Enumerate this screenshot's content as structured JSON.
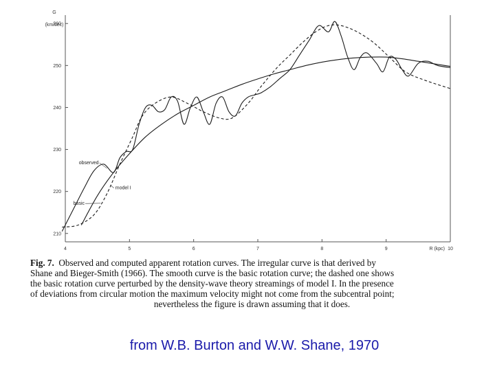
{
  "chart_data": {
    "type": "line",
    "title": "",
    "ylabel": "G",
    "ylabel_unit": "(km/sec)",
    "xlabel": "R (kpc)",
    "xlim": [
      4,
      10
    ],
    "ylim": [
      208,
      262
    ],
    "grid": false,
    "x_tick_labels": [
      {
        "value": 4,
        "label": "4"
      },
      {
        "value": 5,
        "label": "5"
      },
      {
        "value": 6,
        "label": "6"
      },
      {
        "value": 7,
        "label": "7"
      },
      {
        "value": 8,
        "label": "8"
      },
      {
        "value": 9,
        "label": "9"
      },
      {
        "value": 10,
        "label": "10"
      }
    ],
    "y_tick_labels": [
      {
        "value": 210,
        "label": "210"
      },
      {
        "value": 220,
        "label": "220"
      },
      {
        "value": 230,
        "label": "230"
      },
      {
        "value": 240,
        "label": "240"
      },
      {
        "value": 250,
        "label": "250"
      },
      {
        "value": 260,
        "label": "260"
      }
    ],
    "series": [
      {
        "name": "observed",
        "style": "solid",
        "x": [
          3.95,
          4.1,
          4.3,
          4.45,
          4.6,
          4.75,
          4.85,
          4.95,
          5.05,
          5.15,
          5.25,
          5.35,
          5.45,
          5.55,
          5.65,
          5.75,
          5.85,
          5.95,
          6.05,
          6.15,
          6.25,
          6.35,
          6.45,
          6.55,
          6.65,
          6.75,
          6.85,
          6.95,
          7.05,
          7.2,
          7.35,
          7.5,
          7.65,
          7.8,
          7.95,
          8.1,
          8.2,
          8.3,
          8.4,
          8.5,
          8.6,
          8.7,
          8.85,
          8.95,
          9.05,
          9.15,
          9.25,
          9.35,
          9.5,
          9.65,
          9.8,
          10.0
        ],
        "y": [
          210.5,
          215,
          221,
          225,
          226.5,
          224.5,
          228,
          229.5,
          230,
          236,
          240,
          240.5,
          239,
          239.5,
          242.5,
          241.5,
          236,
          240,
          242.5,
          239,
          236,
          241,
          242.5,
          239,
          238,
          241,
          242.5,
          243,
          243.5,
          245,
          247,
          249,
          252.5,
          256,
          259.5,
          258,
          260.5,
          257,
          252,
          249,
          252,
          253,
          250.5,
          248.5,
          252,
          251.5,
          249,
          247.5,
          250.5,
          251,
          250,
          249.5
        ]
      },
      {
        "name": "model I",
        "style": "dashed",
        "x": [
          3.95,
          4.2,
          4.45,
          4.65,
          4.85,
          5.05,
          5.2,
          5.4,
          5.65,
          5.9,
          6.15,
          6.4,
          6.6,
          6.85,
          7.05,
          7.3,
          7.5,
          7.7,
          7.9,
          8.1,
          8.3,
          8.55,
          8.8,
          9.05,
          9.3,
          9.6,
          10.0
        ],
        "y": [
          211.5,
          212,
          214.5,
          219.5,
          226.5,
          233,
          238,
          241,
          242.5,
          241,
          239,
          237.5,
          237.5,
          241,
          245,
          249.5,
          252.5,
          255.5,
          258,
          259.5,
          259.5,
          258,
          255.5,
          252,
          248.5,
          246.5,
          244.5
        ]
      },
      {
        "name": "basic",
        "style": "solid",
        "x": [
          4.25,
          4.5,
          4.75,
          5.0,
          5.25,
          5.5,
          5.75,
          6.0,
          6.25,
          6.5,
          6.75,
          7.0,
          7.25,
          7.5,
          7.75,
          8.0,
          8.25,
          8.5,
          8.75,
          9.0,
          9.25,
          9.5,
          9.75,
          10.0
        ],
        "y": [
          212,
          219,
          224.5,
          229,
          233,
          236,
          238.5,
          240.5,
          242.5,
          244,
          245.5,
          246.8,
          248,
          249,
          250,
          250.8,
          251.4,
          251.8,
          252,
          252,
          251.6,
          251,
          250.4,
          249.8
        ]
      }
    ],
    "annotations": [
      {
        "text": "observed",
        "x": 4.52,
        "y": 226.5
      },
      {
        "text": "model I",
        "x": 4.78,
        "y": 220.5
      },
      {
        "text": "basic",
        "x": 4.3,
        "y": 216.8
      }
    ]
  },
  "caption": {
    "fig_label": "Fig. 7.",
    "line1_rest": "Observed and computed apparent rotation curves. The irregular curve is that derived by",
    "line2": "Shane and Bieger-Smith (1966). The smooth curve is the basic rotation curve; the dashed one shows",
    "line3": "the basic rotation curve perturbed by the density-wave theory streamings of model I. In the presence",
    "line4": "of deviations from circular motion the maximum velocity might not come from the subcentral point;",
    "line5": "nevertheless the figure is drawn assuming that it does."
  },
  "credit": "from   W.B. Burton and W.W. Shane,  1970"
}
